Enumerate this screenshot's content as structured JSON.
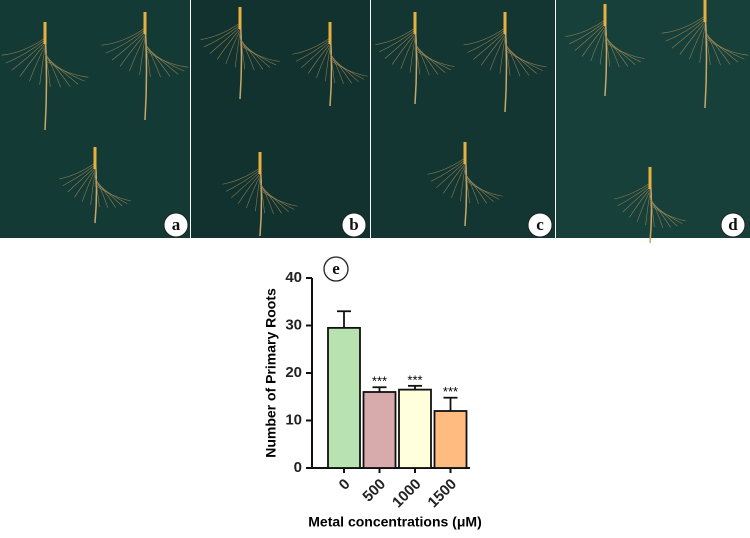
{
  "panel_labels": [
    "a",
    "b",
    "c",
    "d"
  ],
  "chart_data": {
    "type": "bar",
    "panel_label": "e",
    "y_label": "Number of Primary Roots",
    "x_label": "Metal concentrations (μM)",
    "categories": [
      "0",
      "500",
      "1000",
      "1500"
    ],
    "values": [
      29.5,
      16,
      16.5,
      12
    ],
    "errors": [
      3.5,
      1,
      0.8,
      2.8
    ],
    "annotations": [
      null,
      "***",
      "***",
      "***"
    ],
    "colors": [
      "#b8e3b0",
      "#d7abab",
      "#ffffdc",
      "#ffbb80"
    ],
    "ylim": [
      0,
      40
    ],
    "yticks": [
      0,
      10,
      20,
      30,
      40
    ],
    "grid": false
  }
}
